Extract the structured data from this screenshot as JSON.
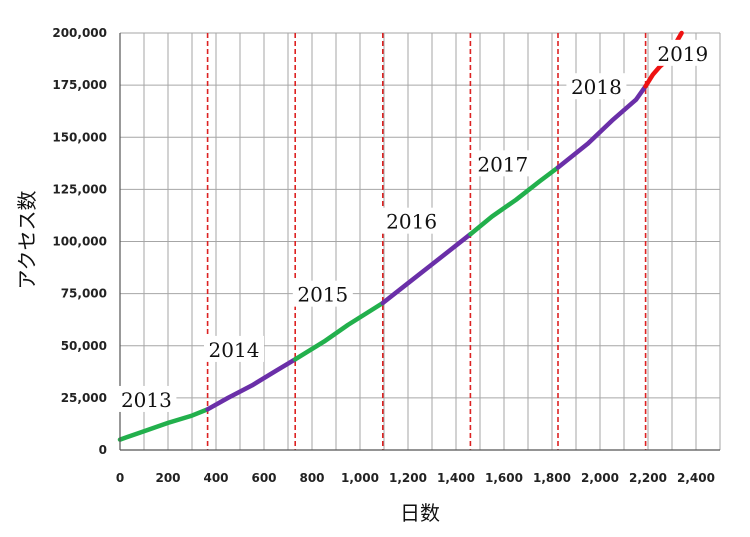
{
  "chart_data": {
    "type": "line",
    "title": "",
    "xlabel": "日数",
    "ylabel": "アクセス数",
    "xlim": [
      0,
      2500
    ],
    "ylim": [
      0,
      200000
    ],
    "x_ticks": [
      0,
      200,
      400,
      600,
      800,
      1000,
      1200,
      1400,
      1600,
      1800,
      2000,
      2200,
      2400
    ],
    "x_tick_labels": [
      "0",
      "200",
      "400",
      "600",
      "800",
      "1,000",
      "1,200",
      "1,400",
      "1,600",
      "1,800",
      "2,000",
      "2,200",
      "2,400"
    ],
    "y_ticks": [
      0,
      25000,
      50000,
      75000,
      100000,
      125000,
      150000,
      175000,
      200000
    ],
    "y_tick_labels": [
      "0",
      "25,000",
      "50,000",
      "75,000",
      "100,000",
      "125,000",
      "150,000",
      "175,000",
      "200,000"
    ],
    "grid": true,
    "year_boundaries": [
      365,
      730,
      1095,
      1460,
      1825,
      2190
    ],
    "colors": {
      "green": "#22b04c",
      "purple": "#6a2fa8",
      "red": "#ee1111",
      "boundary": "#dd2222",
      "grid": "#a6a6a6"
    },
    "series": [
      {
        "x": [
          0,
          100,
          200,
          300,
          365
        ],
        "y": [
          5000,
          9000,
          13000,
          16500,
          19500
        ],
        "color": "green"
      },
      {
        "x": [
          365,
          450,
          550,
          650,
          730
        ],
        "y": [
          19500,
          25000,
          31000,
          38000,
          43500
        ],
        "color": "purple"
      },
      {
        "x": [
          730,
          850,
          950,
          1095
        ],
        "y": [
          43500,
          52000,
          60000,
          70500
        ],
        "color": "green"
      },
      {
        "x": [
          1095,
          1200,
          1300,
          1460
        ],
        "y": [
          70500,
          80000,
          89000,
          103500
        ],
        "color": "purple"
      },
      {
        "x": [
          1460,
          1550,
          1650,
          1750,
          1825
        ],
        "y": [
          103500,
          112000,
          120000,
          129000,
          135500
        ],
        "color": "green"
      },
      {
        "x": [
          1825,
          1950,
          2050,
          2150,
          2190
        ],
        "y": [
          135500,
          147000,
          158000,
          168000,
          174500
        ],
        "color": "purple"
      },
      {
        "x": [
          2190,
          2220,
          2250,
          2280,
          2300,
          2340
        ],
        "y": [
          174500,
          180000,
          184000,
          187000,
          192000,
          200000
        ],
        "color": "red"
      }
    ],
    "annotations": [
      {
        "text": "2013",
        "x": 110,
        "y": 24000
      },
      {
        "text": "2014",
        "x": 475,
        "y": 48000
      },
      {
        "text": "2015",
        "x": 845,
        "y": 74500
      },
      {
        "text": "2016",
        "x": 1215,
        "y": 109500
      },
      {
        "text": "2017",
        "x": 1595,
        "y": 137000
      },
      {
        "text": "2018",
        "x": 1985,
        "y": 174000
      },
      {
        "text": "2019",
        "x": 2345,
        "y": 190000
      }
    ]
  }
}
